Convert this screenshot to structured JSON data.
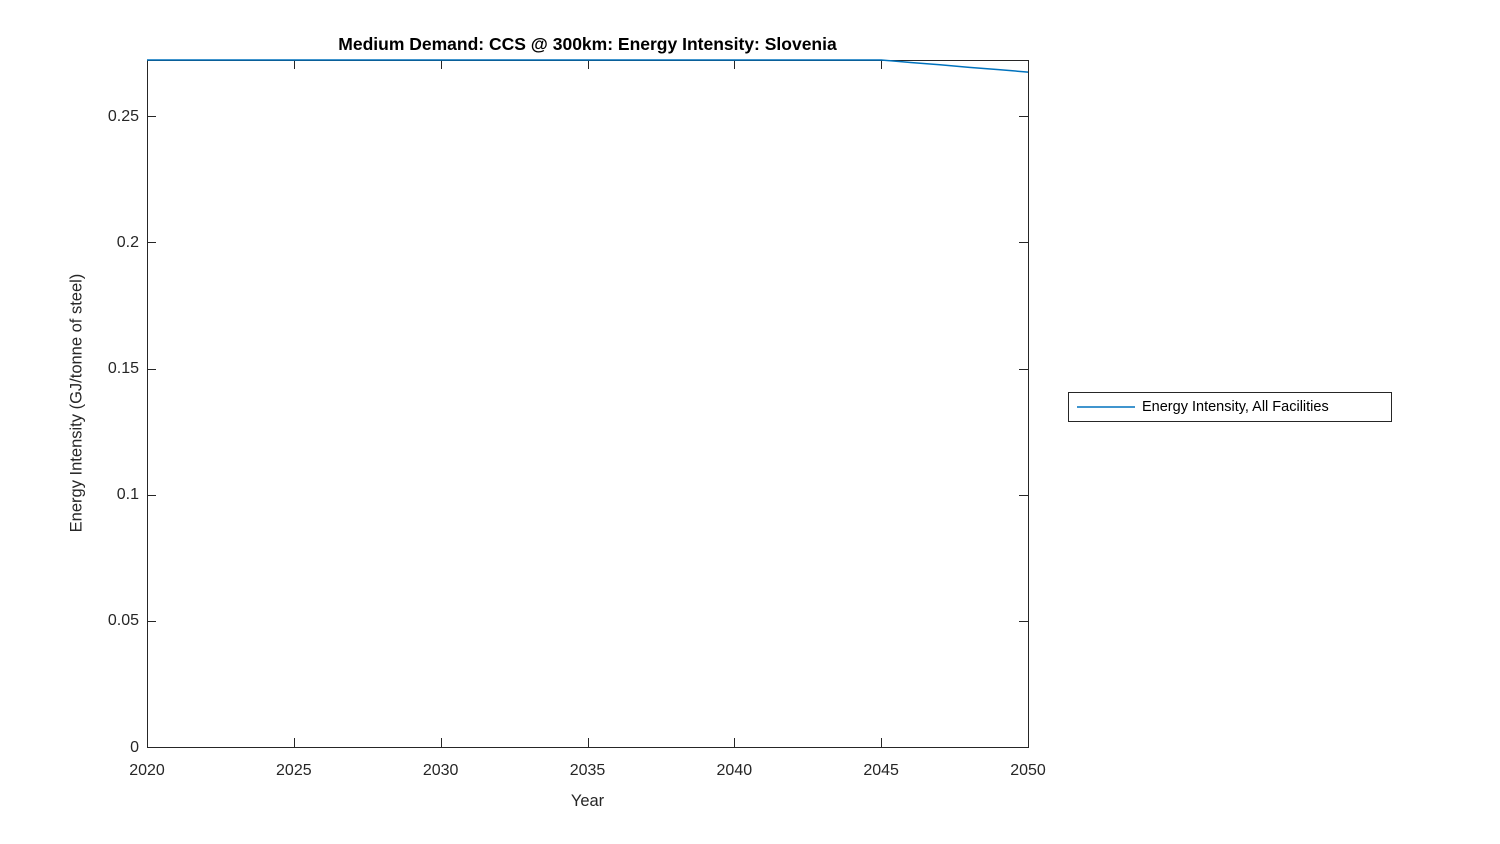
{
  "chart_data": {
    "type": "line",
    "title": "Medium Demand: CCS @ 300km: Energy Intensity: Slovenia",
    "xlabel": "Year",
    "ylabel": "Energy Intensity (GJ/tonne of steel)",
    "xlim": [
      2020,
      2050
    ],
    "ylim": [
      0,
      0.2723
    ],
    "grid": false,
    "box": true,
    "tick_direction": "in",
    "axis_color": "#262626",
    "background_color": "#ffffff",
    "xticks": [
      {
        "value": 2020,
        "label": "2020"
      },
      {
        "value": 2025,
        "label": "2025"
      },
      {
        "value": 2030,
        "label": "2030"
      },
      {
        "value": 2035,
        "label": "2035"
      },
      {
        "value": 2040,
        "label": "2040"
      },
      {
        "value": 2045,
        "label": "2045"
      },
      {
        "value": 2050,
        "label": "2050"
      }
    ],
    "yticks": [
      {
        "value": 0,
        "label": "0"
      },
      {
        "value": 0.05,
        "label": "0.05"
      },
      {
        "value": 0.1,
        "label": "0.1"
      },
      {
        "value": 0.15,
        "label": "0.15"
      },
      {
        "value": 0.2,
        "label": "0.2"
      },
      {
        "value": 0.25,
        "label": "0.25"
      }
    ],
    "legend": {
      "position": "outside-right",
      "border": true,
      "entries": [
        {
          "label": "Energy Intensity, All Facilities",
          "color": "#0072BD"
        }
      ]
    },
    "series": [
      {
        "name": "Energy Intensity, All Facilities",
        "color": "#0072BD",
        "line_width": 1.5,
        "x": [
          2020,
          2021,
          2022,
          2023,
          2024,
          2025,
          2026,
          2027,
          2028,
          2029,
          2030,
          2031,
          2032,
          2033,
          2034,
          2035,
          2036,
          2037,
          2038,
          2039,
          2040,
          2041,
          2042,
          2043,
          2044,
          2045,
          2046,
          2047,
          2048,
          2049,
          2050
        ],
        "y": [
          0.2723,
          0.2723,
          0.2723,
          0.2723,
          0.2723,
          0.2723,
          0.2723,
          0.2723,
          0.2723,
          0.2723,
          0.2723,
          0.2723,
          0.2723,
          0.2723,
          0.2723,
          0.2723,
          0.2723,
          0.2723,
          0.2723,
          0.2723,
          0.2723,
          0.2723,
          0.2723,
          0.2723,
          0.2723,
          0.2723,
          0.2713,
          0.2704,
          0.2694,
          0.2685,
          0.2675
        ]
      }
    ]
  }
}
